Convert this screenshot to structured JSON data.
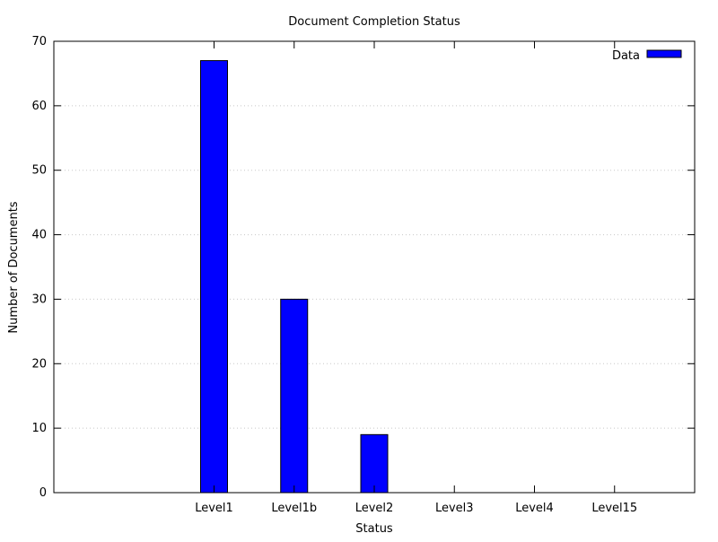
{
  "chart_data": {
    "type": "bar",
    "title": "Document Completion Status",
    "xlabel": "Status",
    "ylabel": "Number of Documents",
    "categories": [
      "Level1",
      "Level1b",
      "Level2",
      "Level3",
      "Level4",
      "Level15"
    ],
    "series": [
      {
        "name": "Data",
        "values": [
          67,
          30,
          9,
          0,
          0,
          0
        ],
        "color": "#0000ff"
      }
    ],
    "ylim": [
      0,
      70
    ],
    "yticks": [
      0,
      10,
      20,
      30,
      40,
      50,
      60,
      70
    ],
    "grid": true,
    "legend_position": "top-right"
  }
}
